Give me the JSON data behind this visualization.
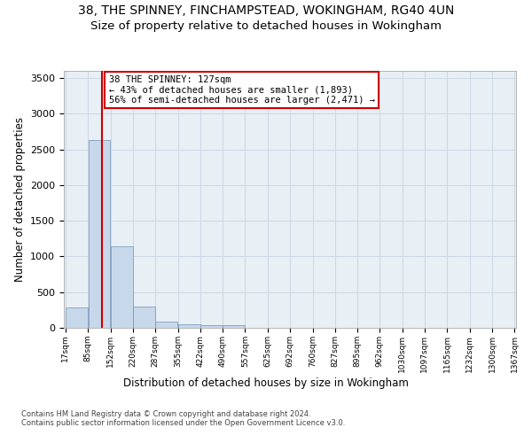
{
  "title_line1": "38, THE SPINNEY, FINCHAMPSTEAD, WOKINGHAM, RG40 4UN",
  "title_line2": "Size of property relative to detached houses in Wokingham",
  "xlabel": "Distribution of detached houses by size in Wokingham",
  "ylabel": "Number of detached properties",
  "footnote": "Contains HM Land Registry data © Crown copyright and database right 2024.\nContains public sector information licensed under the Open Government Licence v3.0.",
  "annotation_text": "38 THE SPINNEY: 127sqm\n← 43% of detached houses are smaller (1,893)\n56% of semi-detached houses are larger (2,471) →",
  "property_sqm": 127,
  "bin_edges": [
    17,
    85,
    152,
    220,
    287,
    355,
    422,
    490,
    557,
    625,
    692,
    760,
    827,
    895,
    962,
    1030,
    1097,
    1165,
    1232,
    1300,
    1367
  ],
  "bar_heights": [
    290,
    2630,
    1140,
    300,
    90,
    50,
    35,
    35,
    0,
    0,
    0,
    0,
    0,
    0,
    0,
    0,
    0,
    0,
    0,
    0
  ],
  "bar_color": "#c8d8eb",
  "bar_edge_color": "#7090b8",
  "vline_color": "#cc0000",
  "vline_x": 127,
  "annotation_box_facecolor": "white",
  "annotation_box_edgecolor": "#cc0000",
  "ylim": [
    0,
    3600
  ],
  "yticks": [
    0,
    500,
    1000,
    1500,
    2000,
    2500,
    3000,
    3500
  ],
  "tick_labels": [
    "17sqm",
    "85sqm",
    "152sqm",
    "220sqm",
    "287sqm",
    "355sqm",
    "422sqm",
    "490sqm",
    "557sqm",
    "625sqm",
    "692sqm",
    "760sqm",
    "827sqm",
    "895sqm",
    "962sqm",
    "1030sqm",
    "1097sqm",
    "1165sqm",
    "1232sqm",
    "1300sqm",
    "1367sqm"
  ],
  "grid_color": "#ccd8e4",
  "background_color": "#e8eff5",
  "figure_bg": "#ffffff",
  "title_fontsize": 10,
  "subtitle_fontsize": 9.5,
  "annotation_fontsize": 7.5,
  "axis_label_fontsize": 8.5,
  "ytick_fontsize": 8,
  "xtick_fontsize": 6.5,
  "footnote_fontsize": 6.0
}
